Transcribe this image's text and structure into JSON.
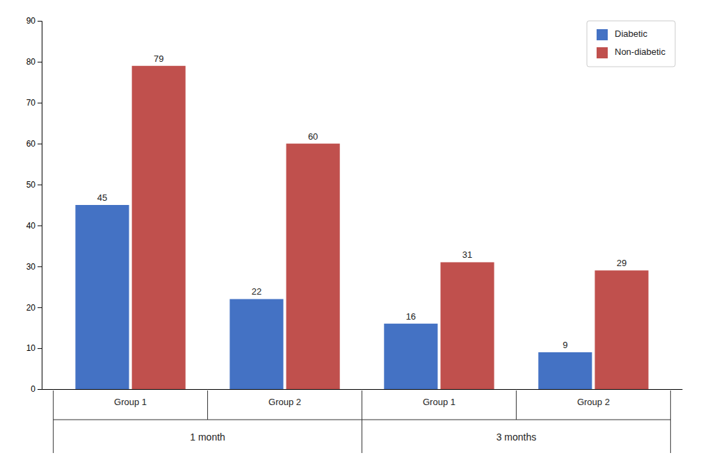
{
  "chart_data": {
    "type": "bar",
    "categories": [
      "Group 1",
      "Group 2",
      "Group 1",
      "Group 2"
    ],
    "category_groups": [
      "1 month",
      "1 month",
      "3 months",
      "3 months"
    ],
    "series": [
      {
        "name": "Diabetic",
        "color": "#4472C4",
        "values": [
          45,
          22,
          16,
          9
        ]
      },
      {
        "name": "Non-diabetic",
        "color": "#C0504D",
        "values": [
          79,
          60,
          31,
          29
        ]
      }
    ],
    "ylim": [
      0,
      90
    ],
    "yticks": [
      0,
      10,
      20,
      30,
      40,
      50,
      60,
      70,
      80,
      90
    ],
    "data_labels": true,
    "legend": "upper right",
    "grid": false
  }
}
